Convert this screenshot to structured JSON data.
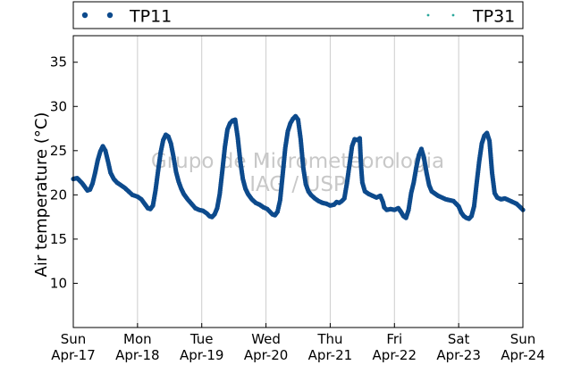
{
  "chart_data": {
    "type": "scatter",
    "ylabel": "Air temperature (°C)",
    "xlabel": "",
    "ylim": [
      5,
      38
    ],
    "yticks": [
      10,
      15,
      20,
      25,
      30,
      35
    ],
    "xlim": [
      0,
      7
    ],
    "xticks": [
      {
        "x": 0,
        "day": "Sun",
        "date": "Apr-17"
      },
      {
        "x": 1,
        "day": "Mon",
        "date": "Apr-18"
      },
      {
        "x": 2,
        "day": "Tue",
        "date": "Apr-19"
      },
      {
        "x": 3,
        "day": "Wed",
        "date": "Apr-20"
      },
      {
        "x": 4,
        "day": "Thu",
        "date": "Apr-21"
      },
      {
        "x": 5,
        "day": "Fri",
        "date": "Apr-22"
      },
      {
        "x": 6,
        "day": "Sat",
        "date": "Apr-23"
      },
      {
        "x": 7,
        "day": "Sun",
        "date": "Apr-24"
      }
    ],
    "grid": "vertical",
    "legend_position": "top",
    "watermark": [
      "Grupo de Micrometeorologia",
      "IAG / USP"
    ],
    "series": [
      {
        "name": "TP11",
        "color": "#0d4a8c",
        "marker": "dot",
        "points": [
          [
            0.0,
            21.8
          ],
          [
            0.06,
            21.9
          ],
          [
            0.1,
            21.6
          ],
          [
            0.14,
            21.3
          ],
          [
            0.18,
            20.9
          ],
          [
            0.22,
            20.5
          ],
          [
            0.26,
            20.6
          ],
          [
            0.3,
            21.3
          ],
          [
            0.34,
            22.5
          ],
          [
            0.38,
            23.9
          ],
          [
            0.42,
            24.9
          ],
          [
            0.46,
            25.5
          ],
          [
            0.5,
            25.0
          ],
          [
            0.54,
            23.8
          ],
          [
            0.58,
            22.5
          ],
          [
            0.63,
            21.8
          ],
          [
            0.68,
            21.4
          ],
          [
            0.74,
            21.1
          ],
          [
            0.8,
            20.8
          ],
          [
            0.86,
            20.4
          ],
          [
            0.92,
            20.0
          ],
          [
            1.0,
            19.8
          ],
          [
            1.06,
            19.5
          ],
          [
            1.12,
            18.9
          ],
          [
            1.16,
            18.5
          ],
          [
            1.2,
            18.4
          ],
          [
            1.24,
            18.8
          ],
          [
            1.28,
            20.5
          ],
          [
            1.32,
            22.7
          ],
          [
            1.36,
            24.8
          ],
          [
            1.4,
            26.2
          ],
          [
            1.44,
            26.8
          ],
          [
            1.48,
            26.6
          ],
          [
            1.52,
            25.8
          ],
          [
            1.56,
            24.3
          ],
          [
            1.6,
            22.6
          ],
          [
            1.64,
            21.5
          ],
          [
            1.68,
            20.7
          ],
          [
            1.72,
            20.1
          ],
          [
            1.78,
            19.5
          ],
          [
            1.84,
            19.0
          ],
          [
            1.9,
            18.5
          ],
          [
            1.96,
            18.3
          ],
          [
            2.02,
            18.2
          ],
          [
            2.08,
            17.9
          ],
          [
            2.12,
            17.6
          ],
          [
            2.16,
            17.5
          ],
          [
            2.2,
            17.8
          ],
          [
            2.24,
            18.5
          ],
          [
            2.28,
            20.1
          ],
          [
            2.32,
            22.7
          ],
          [
            2.36,
            25.4
          ],
          [
            2.4,
            27.4
          ],
          [
            2.44,
            28.1
          ],
          [
            2.48,
            28.4
          ],
          [
            2.52,
            28.5
          ],
          [
            2.56,
            26.5
          ],
          [
            2.6,
            23.8
          ],
          [
            2.64,
            21.8
          ],
          [
            2.68,
            20.7
          ],
          [
            2.72,
            20.1
          ],
          [
            2.78,
            19.5
          ],
          [
            2.84,
            19.1
          ],
          [
            2.9,
            18.9
          ],
          [
            2.96,
            18.6
          ],
          [
            3.02,
            18.4
          ],
          [
            3.06,
            18.1
          ],
          [
            3.1,
            17.8
          ],
          [
            3.14,
            17.7
          ],
          [
            3.18,
            18.1
          ],
          [
            3.22,
            19.4
          ],
          [
            3.26,
            22.3
          ],
          [
            3.3,
            25.3
          ],
          [
            3.34,
            27.2
          ],
          [
            3.38,
            28.1
          ],
          [
            3.42,
            28.6
          ],
          [
            3.46,
            28.9
          ],
          [
            3.5,
            28.5
          ],
          [
            3.54,
            26.3
          ],
          [
            3.58,
            23.1
          ],
          [
            3.62,
            21.2
          ],
          [
            3.66,
            20.4
          ],
          [
            3.7,
            20.0
          ],
          [
            3.76,
            19.6
          ],
          [
            3.82,
            19.3
          ],
          [
            3.88,
            19.1
          ],
          [
            3.94,
            19.0
          ],
          [
            4.0,
            18.8
          ],
          [
            4.06,
            18.9
          ],
          [
            4.1,
            19.2
          ],
          [
            4.14,
            19.1
          ],
          [
            4.18,
            19.3
          ],
          [
            4.22,
            19.6
          ],
          [
            4.26,
            21.3
          ],
          [
            4.3,
            23.4
          ],
          [
            4.34,
            25.5
          ],
          [
            4.38,
            26.3
          ],
          [
            4.42,
            26.2
          ],
          [
            4.46,
            26.4
          ],
          [
            4.48,
            23.3
          ],
          [
            4.5,
            21.4
          ],
          [
            4.54,
            20.4
          ],
          [
            4.6,
            20.1
          ],
          [
            4.66,
            19.9
          ],
          [
            4.72,
            19.7
          ],
          [
            4.78,
            19.9
          ],
          [
            4.82,
            19.2
          ],
          [
            4.84,
            18.6
          ],
          [
            4.88,
            18.3
          ],
          [
            4.94,
            18.4
          ],
          [
            5.0,
            18.3
          ],
          [
            5.06,
            18.5
          ],
          [
            5.1,
            18.1
          ],
          [
            5.14,
            17.6
          ],
          [
            5.18,
            17.4
          ],
          [
            5.22,
            18.3
          ],
          [
            5.26,
            20.2
          ],
          [
            5.3,
            21.4
          ],
          [
            5.34,
            23.1
          ],
          [
            5.38,
            24.5
          ],
          [
            5.42,
            25.2
          ],
          [
            5.46,
            24.2
          ],
          [
            5.5,
            22.5
          ],
          [
            5.54,
            21.1
          ],
          [
            5.58,
            20.4
          ],
          [
            5.62,
            20.2
          ],
          [
            5.68,
            19.9
          ],
          [
            5.74,
            19.7
          ],
          [
            5.8,
            19.5
          ],
          [
            5.86,
            19.4
          ],
          [
            5.92,
            19.3
          ],
          [
            5.96,
            19.0
          ],
          [
            6.0,
            18.7
          ],
          [
            6.04,
            18.0
          ],
          [
            6.08,
            17.6
          ],
          [
            6.12,
            17.4
          ],
          [
            6.16,
            17.3
          ],
          [
            6.2,
            17.6
          ],
          [
            6.24,
            18.7
          ],
          [
            6.28,
            21.3
          ],
          [
            6.32,
            23.8
          ],
          [
            6.36,
            25.8
          ],
          [
            6.4,
            26.7
          ],
          [
            6.44,
            27.0
          ],
          [
            6.48,
            26.1
          ],
          [
            6.52,
            22.5
          ],
          [
            6.56,
            20.2
          ],
          [
            6.6,
            19.7
          ],
          [
            6.66,
            19.5
          ],
          [
            6.72,
            19.6
          ],
          [
            6.78,
            19.4
          ],
          [
            6.84,
            19.2
          ],
          [
            6.9,
            19.0
          ],
          [
            6.96,
            18.6
          ],
          [
            7.0,
            18.3
          ]
        ]
      },
      {
        "name": "TP31",
        "color": "#2aa79b",
        "marker": "small-dot",
        "points": []
      }
    ]
  }
}
